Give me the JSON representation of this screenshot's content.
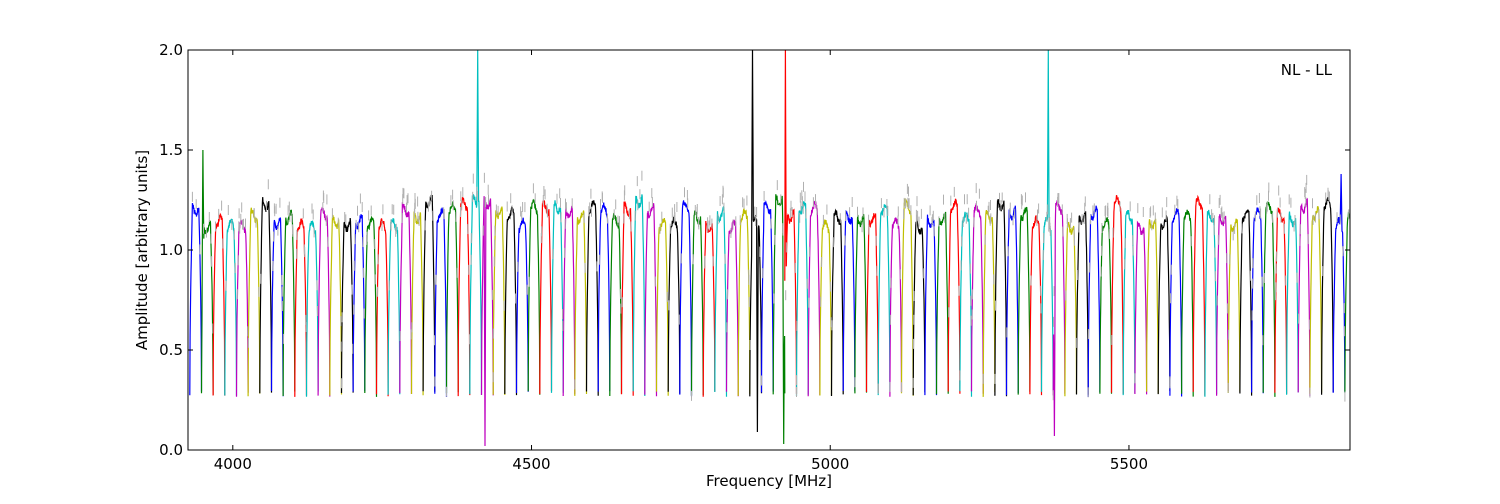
{
  "chart_data": {
    "type": "line",
    "title": "",
    "xlabel": "Frequency [MHz]",
    "ylabel": "Amplitude [arbitrary units]",
    "annotation": "NL - LL",
    "xlim": [
      3925,
      5870
    ],
    "ylim": [
      0.0,
      2.0
    ],
    "grid": false,
    "legend": "none",
    "x_ticks": [
      4000,
      4500,
      5000,
      5500
    ],
    "x_tick_labels": [
      "4000",
      "4500",
      "5000",
      "5500"
    ],
    "y_ticks": [
      0.0,
      0.5,
      1.0,
      1.5,
      2.0
    ],
    "y_tick_labels": [
      "0.0",
      "0.5",
      "1.0",
      "1.5",
      "2.0"
    ],
    "colors": [
      "#0000ff",
      "#008000",
      "#ff0000",
      "#00bfbf",
      "#bf00bf",
      "#bfbf00",
      "#000000"
    ],
    "background_series_color": "#b0b0b0",
    "subband_spacing_mhz": 19.53,
    "subband_start_mhz": 3928,
    "subbands_count": 100,
    "typical_level": 1.18,
    "edge_minimum": 0.28,
    "notable_peaks": [
      {
        "x": 3950,
        "y": 1.5
      },
      {
        "x": 4410,
        "y": 2.0
      },
      {
        "x": 4422,
        "y": 0.02
      },
      {
        "x": 4870,
        "y": 2.0
      },
      {
        "x": 4878,
        "y": 0.09
      },
      {
        "x": 4922,
        "y": 0.03
      },
      {
        "x": 4925,
        "y": 2.0
      },
      {
        "x": 5365,
        "y": 2.0
      },
      {
        "x": 5375,
        "y": 0.07
      },
      {
        "x": 5855,
        "y": 1.38
      }
    ]
  }
}
